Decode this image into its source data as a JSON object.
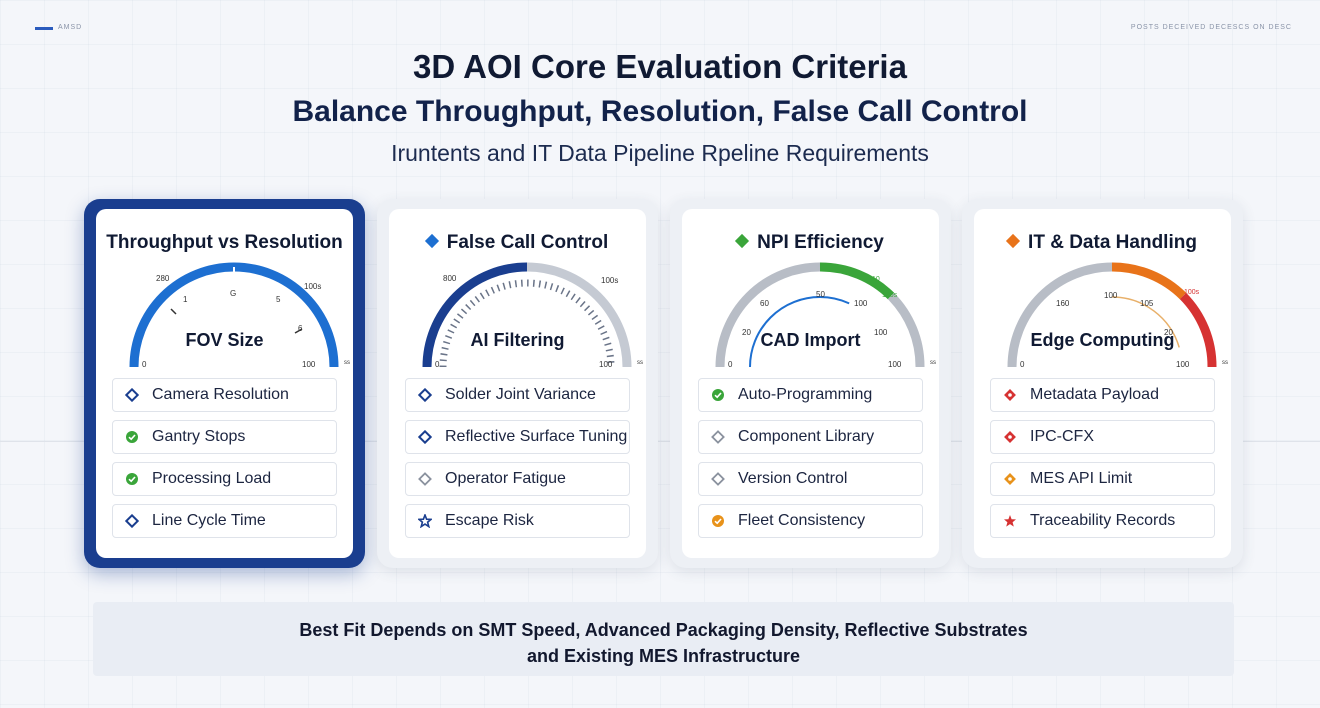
{
  "header": {
    "tag_left": "AMSD",
    "tag_right": "POSTS DECEIVED DECESCS ON DESC",
    "title": "3D AOI Core Evaluation Criteria",
    "subtitle": "Balance Throughput, Resolution, False Call Control",
    "subtitle2": "Iruntents and IT Data Pipeline Rpeline Requirements"
  },
  "colors": {
    "navy": "#1a3e8f",
    "blue": "#1d6fd1",
    "green": "#3aa53a",
    "orange": "#e8731a",
    "red": "#d63232",
    "gray": "#b8bdc6"
  },
  "cards": [
    {
      "title": "Throughput vs Resolution",
      "icon": "",
      "gauge_label": "FOV Size",
      "gauge_ticks": [
        "280",
        "1",
        "G",
        "5",
        "6",
        "100s",
        "0",
        "100",
        "ss"
      ],
      "items": [
        {
          "label": "Camera Resolution",
          "icon": "navy-diamond-icon"
        },
        {
          "label": "Gantry Stops",
          "icon": "green-check-icon"
        },
        {
          "label": "Processing Load",
          "icon": "green-check-icon"
        },
        {
          "label": "Line Cycle Time",
          "icon": "navy-diamond-icon"
        }
      ]
    },
    {
      "title": "False Call Control",
      "icon": "blue-diamond-icon",
      "gauge_label": "AI Filtering",
      "gauge_ticks": [
        "800",
        "100s",
        "0",
        "100",
        "ss"
      ],
      "items": [
        {
          "label": "Solder Joint Variance",
          "icon": "navy-diamond-icon"
        },
        {
          "label": "Reflective Surface Tuning",
          "icon": "navy-diamond-icon"
        },
        {
          "label": "Operator Fatigue",
          "icon": "gray-diamond-icon"
        },
        {
          "label": "Escape Risk",
          "icon": "navy-star-icon"
        }
      ]
    },
    {
      "title": "NPI Efficiency",
      "icon": "green-diamond-icon",
      "gauge_label": "CAD Import",
      "gauge_ticks": [
        "60",
        "50",
        "100",
        "100s",
        "20",
        "100",
        "0",
        "100",
        "ss",
        "10"
      ],
      "items": [
        {
          "label": "Auto-Programming",
          "icon": "green-check-icon"
        },
        {
          "label": "Component Library",
          "icon": "gray-diamond-icon"
        },
        {
          "label": "Version Control",
          "icon": "gray-diamond-icon"
        },
        {
          "label": "Fleet Consistency",
          "icon": "orange-check-icon"
        }
      ]
    },
    {
      "title": "IT & Data Handling",
      "icon": "orange-diamond-icon",
      "gauge_label": "Edge Computing",
      "gauge_ticks": [
        "160",
        "100",
        "105",
        "100s",
        "20",
        "100",
        "0",
        "ss"
      ],
      "items": [
        {
          "label": "Metadata Payload",
          "icon": "red-diamond-icon"
        },
        {
          "label": "IPC-CFX",
          "icon": "red-diamond-icon"
        },
        {
          "label": "MES API Limit",
          "icon": "orange-diamond-icon"
        },
        {
          "label": "Traceability Records",
          "icon": "red-star-icon"
        }
      ]
    }
  ],
  "footer": {
    "line1": "Best Fit Depends on SMT Speed, Advanced Packaging Density, Reflective Substrates",
    "line2": "and Existing MES Infrastructure"
  }
}
